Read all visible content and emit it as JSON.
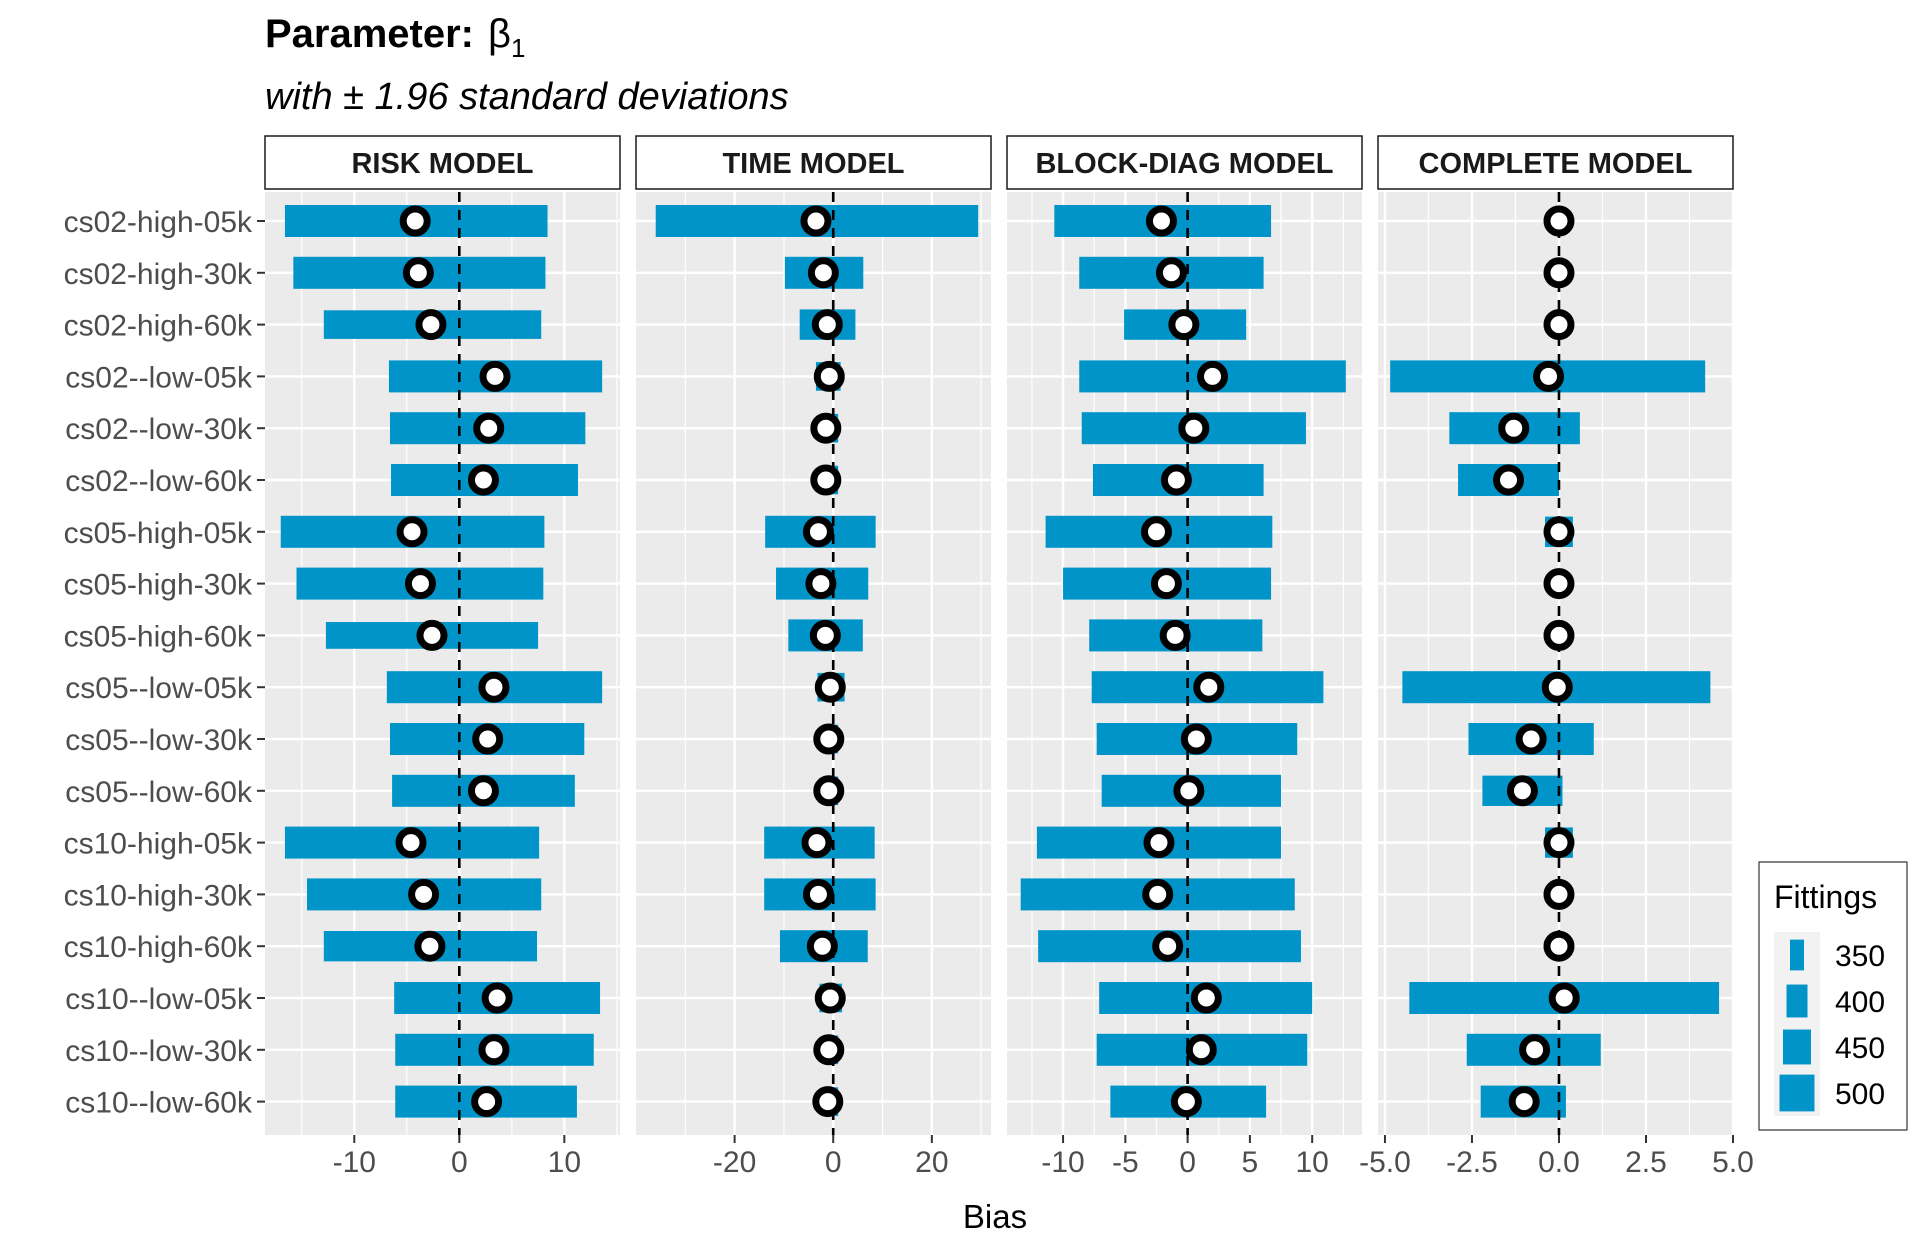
{
  "chart_data": {
    "type": "bar",
    "title_prefix": "Parameter:",
    "title_symbol": "β",
    "title_subscript": "1",
    "subtitle": "with ± 1.96 standard deviations",
    "xlabel": "Bias",
    "ylabel": "",
    "bar_color": "#0094c8",
    "point_fill": "#ffffff",
    "point_stroke": "#000000",
    "reference_line_x": 0,
    "legend": {
      "title": "Fittings",
      "position": "right",
      "entries": [
        "350",
        "400",
        "450",
        "500"
      ]
    },
    "categories": [
      "cs02-high-05k",
      "cs02-high-30k",
      "cs02-high-60k",
      "cs02--low-05k",
      "cs02--low-30k",
      "cs02--low-60k",
      "cs05-high-05k",
      "cs05-high-30k",
      "cs05-high-60k",
      "cs05--low-05k",
      "cs05--low-30k",
      "cs05--low-60k",
      "cs10-high-05k",
      "cs10-high-30k",
      "cs10-high-60k",
      "cs10--low-05k",
      "cs10--low-30k",
      "cs10--low-60k"
    ],
    "panels": [
      {
        "name": "RISK MODEL",
        "xlim": [
          -18.5,
          15.3
        ],
        "ticks": [
          -10,
          0,
          10
        ],
        "tick_labels": [
          "-10",
          "0",
          "10"
        ],
        "minor_ticks": [
          -15,
          -5,
          5,
          15
        ],
        "bias": [
          -4.2,
          -3.9,
          -2.7,
          3.4,
          2.8,
          2.3,
          -4.5,
          -3.7,
          -2.6,
          3.3,
          2.7,
          2.3,
          -4.6,
          -3.4,
          -2.8,
          3.6,
          3.3,
          2.6
        ],
        "lower": [
          -16.6,
          -15.8,
          -12.9,
          -6.7,
          -6.6,
          -6.5,
          -17.0,
          -15.5,
          -12.7,
          -6.9,
          -6.6,
          -6.4,
          -16.6,
          -14.5,
          -12.9,
          -6.2,
          -6.1,
          -6.1
        ],
        "upper": [
          8.4,
          8.2,
          7.8,
          13.6,
          12.0,
          11.3,
          8.1,
          8.0,
          7.5,
          13.6,
          11.9,
          11.0,
          7.6,
          7.8,
          7.4,
          13.4,
          12.8,
          11.2
        ],
        "fittings": [
          500,
          500,
          400,
          500,
          500,
          500,
          500,
          500,
          350,
          500,
          500,
          500,
          500,
          500,
          450,
          500,
          500,
          500
        ]
      },
      {
        "name": "TIME MODEL",
        "xlim": [
          -40.0,
          32.0
        ],
        "ticks": [
          -20,
          0,
          20
        ],
        "tick_labels": [
          "-20",
          "0",
          "20"
        ],
        "minor_ticks": [
          -30,
          -10,
          10,
          30
        ],
        "bias": [
          -3.5,
          -2.0,
          -1.2,
          -0.8,
          -1.5,
          -1.5,
          -3.0,
          -2.5,
          -1.6,
          -0.6,
          -0.9,
          -0.9,
          -3.3,
          -3.0,
          -2.2,
          -0.6,
          -0.9,
          -1.1
        ],
        "lower": [
          -36.0,
          -9.8,
          -6.8,
          -3.5,
          -1.5,
          -1.5,
          -13.8,
          -11.6,
          -9.1,
          -3.2,
          -1.6,
          -1.4,
          -14.0,
          -14.0,
          -10.8,
          -2.8,
          -1.7,
          -1.6
        ],
        "upper": [
          29.4,
          6.1,
          4.5,
          1.5,
          1.0,
          1.0,
          8.6,
          7.1,
          6.0,
          2.3,
          1.0,
          1.0,
          8.4,
          8.6,
          7.0,
          1.8,
          1.0,
          1.0
        ],
        "fittings": [
          500,
          500,
          450,
          400,
          400,
          400,
          500,
          500,
          500,
          400,
          400,
          400,
          500,
          500,
          500,
          400,
          400,
          400
        ]
      },
      {
        "name": "BLOCK-DIAG MODEL",
        "xlim": [
          -14.5,
          14.0
        ],
        "ticks": [
          -10,
          -5,
          0,
          5,
          10
        ],
        "tick_labels": [
          "-10",
          "-5",
          "0",
          "5",
          "10"
        ],
        "minor_ticks": [
          -12.5,
          -7.5,
          -2.5,
          2.5,
          7.5,
          12.5
        ],
        "bias": [
          -2.1,
          -1.3,
          -0.3,
          2.0,
          0.5,
          -0.9,
          -2.5,
          -1.7,
          -1.0,
          1.7,
          0.7,
          0.1,
          -2.3,
          -2.4,
          -1.6,
          1.5,
          1.1,
          -0.1
        ],
        "lower": [
          -10.7,
          -8.7,
          -5.1,
          -8.7,
          -8.5,
          -7.6,
          -11.4,
          -10.0,
          -7.9,
          -7.7,
          -7.3,
          -6.9,
          -12.1,
          -13.4,
          -12.0,
          -7.1,
          -7.3,
          -6.2
        ],
        "upper": [
          6.7,
          6.1,
          4.7,
          12.7,
          9.5,
          6.1,
          6.8,
          6.7,
          6.0,
          10.9,
          8.8,
          7.5,
          7.5,
          8.6,
          9.1,
          10.0,
          9.6,
          6.3
        ],
        "fittings": [
          500,
          500,
          450,
          500,
          500,
          500,
          500,
          500,
          500,
          500,
          500,
          500,
          500,
          500,
          500,
          500,
          500,
          500
        ]
      },
      {
        "name": "COMPLETE MODEL",
        "xlim": [
          -5.2,
          5.0
        ],
        "ticks": [
          -5.0,
          -2.5,
          0.0,
          2.5,
          5.0
        ],
        "tick_labels": [
          "-5.0",
          "-2.5",
          "0.0",
          "2.5",
          "5.0"
        ],
        "minor_ticks": [
          -3.75,
          -1.25,
          1.25,
          3.75
        ],
        "bias": [
          0.0,
          0.0,
          0.0,
          -0.3,
          -1.3,
          -1.45,
          0.0,
          0.0,
          0.0,
          -0.05,
          -0.8,
          -1.05,
          0.0,
          0.0,
          0.0,
          0.15,
          -0.7,
          -1.0
        ],
        "lower": [
          0.0,
          0.0,
          0.0,
          -4.85,
          -3.15,
          -2.9,
          -0.4,
          0.0,
          0.0,
          -4.5,
          -2.6,
          -2.2,
          -0.4,
          0.0,
          0.0,
          -4.3,
          -2.65,
          -2.25
        ],
        "upper": [
          0.0,
          0.0,
          0.0,
          4.2,
          0.6,
          0.0,
          0.4,
          0.0,
          0.0,
          4.35,
          1.0,
          0.1,
          0.4,
          0.0,
          0.0,
          4.6,
          1.2,
          0.2
        ],
        "fittings": [
          500,
          500,
          500,
          500,
          500,
          500,
          450,
          500,
          500,
          500,
          500,
          450,
          450,
          500,
          500,
          500,
          500,
          500
        ]
      }
    ]
  }
}
